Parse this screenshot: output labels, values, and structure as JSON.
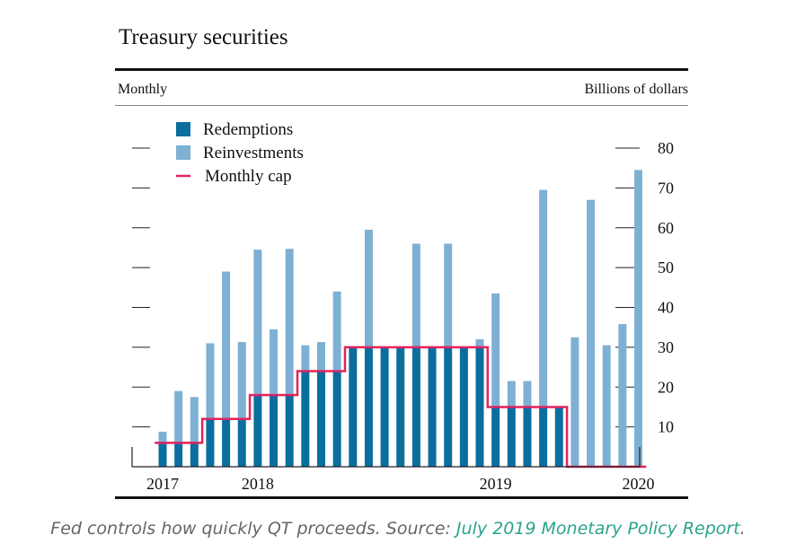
{
  "title": "Treasury securities",
  "unit_left": "Monthly",
  "unit_right": "Billions of dollars",
  "caption": {
    "text": "Fed controls how quickly QT proceeds. Source: ",
    "link_text": "July 2019 Monetary Policy Report",
    "trailing": "."
  },
  "colors": {
    "redemptions": "#0a6e9e",
    "reinvestments": "#7eb0d4",
    "cap": "#e0245e",
    "link": "#2aa48c"
  },
  "chart_data": {
    "type": "bar",
    "stacked": true,
    "categories": [
      "2017-10",
      "2017-11",
      "2017-12",
      "2018-01",
      "2018-02",
      "2018-03",
      "2018-04",
      "2018-05",
      "2018-06",
      "2018-07",
      "2018-08",
      "2018-09",
      "2018-10",
      "2018-11",
      "2018-12",
      "2019-01",
      "2019-02",
      "2019-03",
      "2019-04",
      "2019-05",
      "2019-06",
      "2019-07",
      "2019-08",
      "2019-09",
      "2019-10",
      "2019-11",
      "2019-12",
      "2020-01",
      "2020-02",
      "2020-03",
      "2020-04"
    ],
    "series": [
      {
        "name": "Redemptions",
        "values": [
          6,
          6,
          6,
          12,
          12,
          12,
          18,
          18,
          18,
          24,
          24,
          24,
          30,
          30,
          30,
          30,
          30,
          30,
          30,
          30,
          30,
          15,
          15,
          15,
          15,
          15,
          0,
          0,
          0,
          0,
          0
        ]
      },
      {
        "name": "Reinvestments",
        "values": [
          2.8,
          13,
          11.5,
          19,
          37,
          19.3,
          36.5,
          16.5,
          36.7,
          6.5,
          7.3,
          20,
          0,
          29.5,
          0,
          0,
          26,
          0,
          26,
          0,
          2,
          28.5,
          6.5,
          6.5,
          54.5,
          0,
          32.5,
          67,
          30.5,
          35.8,
          74.5
        ]
      },
      {
        "name": "Monthly cap",
        "type": "step",
        "values": [
          6,
          6,
          6,
          12,
          12,
          12,
          18,
          18,
          18,
          24,
          24,
          24,
          30,
          30,
          30,
          30,
          30,
          30,
          30,
          30,
          30,
          15,
          15,
          15,
          15,
          15,
          0,
          0,
          0,
          0,
          0
        ]
      }
    ],
    "x_tick_labels": [
      "2017",
      "2018",
      "2019",
      "2020"
    ],
    "x_tick_anchor_categories": [
      "2017-10",
      "2018-04",
      "2019-07",
      "2020-04"
    ],
    "yticks": [
      10,
      20,
      30,
      40,
      50,
      60,
      70,
      80
    ],
    "ylim": [
      0,
      80
    ],
    "grid": false,
    "legend_position": "top-left"
  }
}
